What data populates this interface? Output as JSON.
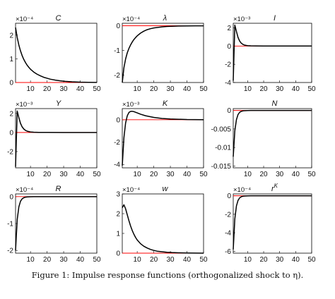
{
  "caption": "Figure 1: Impulse response functions (orthogonalized shock to η).",
  "colors": {
    "response": "#000000",
    "zero_line": "#ff0000",
    "axes": "#000000"
  },
  "chart_data": [
    {
      "type": "line",
      "title": "C",
      "exponent_label": "×10⁻⁴",
      "xlim": [
        1,
        50
      ],
      "ylim": [
        0,
        2.5
      ],
      "x_ticks": [
        10,
        20,
        30,
        40,
        50
      ],
      "y_ticks": [
        0,
        1,
        2
      ],
      "x": [
        1,
        2,
        3,
        4,
        5,
        6,
        7,
        8,
        9,
        10,
        12,
        14,
        16,
        18,
        20,
        22,
        25,
        28,
        31,
        35,
        40,
        45,
        50
      ],
      "values": [
        2.32,
        1.9,
        1.58,
        1.33,
        1.13,
        0.97,
        0.84,
        0.73,
        0.64,
        0.56,
        0.44,
        0.35,
        0.28,
        0.22,
        0.18,
        0.14,
        0.1,
        0.07,
        0.05,
        0.03,
        0.015,
        0.008,
        0.004
      ]
    },
    {
      "type": "line",
      "title": "λ",
      "exponent_label": "×10⁻⁴",
      "xlim": [
        1,
        50
      ],
      "ylim": [
        -2.3,
        0.1
      ],
      "x_ticks": [
        10,
        20,
        30,
        40,
        50
      ],
      "y_ticks": [
        -2,
        -1,
        0
      ],
      "x": [
        1,
        2,
        3,
        4,
        5,
        6,
        7,
        8,
        9,
        10,
        12,
        14,
        16,
        18,
        20,
        22,
        25,
        28,
        31,
        35,
        40,
        45,
        50
      ],
      "values": [
        -2.3,
        -1.7,
        -1.35,
        -1.1,
        -0.92,
        -0.78,
        -0.66,
        -0.56,
        -0.48,
        -0.41,
        -0.3,
        -0.22,
        -0.16,
        -0.12,
        -0.09,
        -0.07,
        -0.045,
        -0.03,
        -0.02,
        -0.01,
        -0.006,
        -0.003,
        -0.002
      ]
    },
    {
      "type": "line",
      "title": "I",
      "exponent_label": "×10⁻³",
      "xlim": [
        1,
        50
      ],
      "ylim": [
        -4,
        2.5
      ],
      "x_ticks": [
        10,
        20,
        30,
        40,
        50
      ],
      "y_ticks": [
        -4,
        -2,
        0,
        2
      ],
      "x": [
        1,
        2,
        3,
        4,
        5,
        6,
        7,
        8,
        9,
        10,
        12,
        15,
        20,
        30,
        40,
        50
      ],
      "values": [
        -3.8,
        2.3,
        1.6,
        0.95,
        0.55,
        0.32,
        0.19,
        0.11,
        0.07,
        0.04,
        0.02,
        0.01,
        0.004,
        0.001,
        0.0,
        0.0
      ]
    },
    {
      "type": "line",
      "title": "Y",
      "exponent_label": "×10⁻³",
      "xlim": [
        1,
        50
      ],
      "ylim": [
        -3.7,
        2.5
      ],
      "x_ticks": [
        10,
        20,
        30,
        40,
        50
      ],
      "y_ticks": [
        -2,
        0,
        2
      ],
      "x": [
        1,
        2,
        3,
        4,
        5,
        6,
        7,
        8,
        9,
        10,
        12,
        15,
        20,
        30,
        40,
        50
      ],
      "values": [
        -3.6,
        2.25,
        1.55,
        0.95,
        0.58,
        0.36,
        0.22,
        0.14,
        0.09,
        0.06,
        0.03,
        0.012,
        0.005,
        0.001,
        0.0,
        0.0
      ]
    },
    {
      "type": "line",
      "title": "K",
      "exponent_label": "×10⁻³",
      "xlim": [
        1,
        50
      ],
      "ylim": [
        -4.3,
        1.0
      ],
      "x_ticks": [
        10,
        20,
        30,
        40,
        50
      ],
      "y_ticks": [
        -4,
        -2,
        0
      ],
      "x": [
        1,
        2,
        3,
        4,
        5,
        6,
        7,
        8,
        10,
        12,
        15,
        20,
        25,
        30,
        40,
        50
      ],
      "values": [
        -4.1,
        -1.6,
        -0.3,
        0.35,
        0.65,
        0.75,
        0.76,
        0.73,
        0.62,
        0.5,
        0.36,
        0.21,
        0.12,
        0.07,
        0.02,
        0.005
      ]
    },
    {
      "type": "line",
      "title": "N",
      "exponent_label": "",
      "xlim": [
        1,
        50
      ],
      "ylim": [
        -0.0155,
        0.0005
      ],
      "x_ticks": [
        10,
        20,
        30,
        40,
        50
      ],
      "y_ticks": [
        -0.015,
        -0.01,
        -0.005,
        0
      ],
      "x": [
        1,
        2,
        3,
        4,
        5,
        6,
        7,
        8,
        10,
        12,
        15,
        20,
        30,
        40,
        50
      ],
      "values": [
        -0.0125,
        -0.0055,
        -0.0025,
        -0.0011,
        -0.0005,
        -0.00025,
        -0.00012,
        -6e-05,
        -2e-05,
        -1e-05,
        0.0,
        0.0,
        0.0,
        0.0,
        0.0
      ]
    },
    {
      "type": "line",
      "title": "R",
      "exponent_label": "×10⁻⁴",
      "xlim": [
        1,
        50
      ],
      "ylim": [
        -2.1,
        0.1
      ],
      "x_ticks": [
        10,
        20,
        30,
        40,
        50
      ],
      "y_ticks": [
        -2,
        -1,
        0
      ],
      "x": [
        1,
        2,
        3,
        4,
        5,
        6,
        7,
        8,
        10,
        12,
        15,
        20,
        30,
        40,
        50
      ],
      "values": [
        -2.0,
        -0.85,
        -0.38,
        -0.17,
        -0.08,
        -0.04,
        -0.02,
        -0.01,
        -0.004,
        -0.002,
        -0.001,
        0.0,
        0.0,
        0.0,
        0.0
      ]
    },
    {
      "type": "line",
      "title": "w",
      "exponent_label": "×10⁻⁴",
      "xlim": [
        1,
        50
      ],
      "ylim": [
        0,
        3.0
      ],
      "x_ticks": [
        10,
        20,
        30,
        40,
        50
      ],
      "y_ticks": [
        0,
        1,
        2,
        3
      ],
      "x": [
        1,
        2,
        3,
        4,
        5,
        6,
        7,
        8,
        9,
        10,
        12,
        14,
        16,
        18,
        20,
        22,
        25,
        28,
        31,
        35,
        40,
        45,
        50
      ],
      "values": [
        2.3,
        2.45,
        2.25,
        1.95,
        1.65,
        1.38,
        1.15,
        0.96,
        0.8,
        0.67,
        0.48,
        0.35,
        0.26,
        0.19,
        0.14,
        0.1,
        0.07,
        0.045,
        0.03,
        0.018,
        0.009,
        0.004,
        0.002
      ]
    },
    {
      "type": "line",
      "title": "r^K",
      "exponent_label": "×10⁻⁴",
      "xlim": [
        1,
        50
      ],
      "ylim": [
        -6.2,
        0.2
      ],
      "x_ticks": [
        10,
        20,
        30,
        40,
        50
      ],
      "y_ticks": [
        -6,
        -4,
        -2,
        0
      ],
      "x": [
        1,
        2,
        3,
        4,
        5,
        6,
        7,
        8,
        10,
        12,
        15,
        20,
        30,
        40,
        50
      ],
      "values": [
        -5.8,
        -2.5,
        -1.1,
        -0.5,
        -0.23,
        -0.11,
        -0.05,
        -0.025,
        -0.008,
        -0.003,
        -0.001,
        0.0,
        0.0,
        0.0,
        0.0
      ]
    }
  ]
}
